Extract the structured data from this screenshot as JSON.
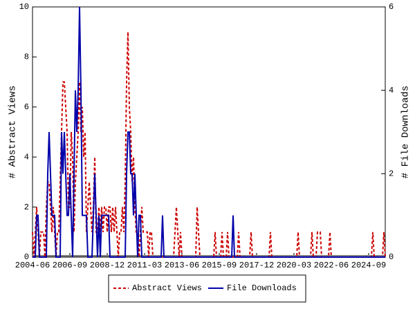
{
  "chart_data": {
    "type": "line",
    "y_label": "# Abstract Views",
    "y2_label": "# File Downloads",
    "categories": [
      "2004-06",
      null,
      null,
      null,
      null,
      null,
      null,
      null,
      null,
      null,
      null,
      null,
      null,
      null,
      null,
      null,
      null,
      null,
      null,
      null,
      null,
      null,
      null,
      null,
      null,
      null,
      null,
      "2006-09",
      null,
      null,
      null,
      null,
      null,
      null,
      null,
      null,
      null,
      null,
      null,
      null,
      null,
      null,
      null,
      null,
      null,
      null,
      null,
      null,
      null,
      null,
      null,
      null,
      null,
      null,
      "2008-12",
      null,
      null,
      null,
      null,
      null,
      null,
      null,
      null,
      null,
      null,
      null,
      null,
      null,
      null,
      null,
      null,
      null,
      null,
      null,
      null,
      null,
      null,
      null,
      null,
      null,
      null,
      "2011-03",
      null,
      null,
      null,
      null,
      null,
      null,
      null,
      null,
      null,
      null,
      null,
      null,
      null,
      null,
      null,
      null,
      null,
      null,
      null,
      null,
      null,
      null,
      null,
      null,
      null,
      null,
      "2013-06",
      null,
      null,
      null,
      null,
      null,
      null,
      null,
      null,
      null,
      null,
      null,
      null,
      null,
      null,
      null,
      null,
      null,
      null,
      null,
      null,
      null,
      null,
      null,
      null,
      null,
      null,
      "2015-09",
      null,
      null,
      null,
      null,
      null,
      null,
      null,
      null,
      null,
      null,
      null,
      null,
      null,
      null,
      null,
      null,
      null,
      null,
      null,
      null,
      null,
      null,
      null,
      null,
      null,
      null,
      "2017-12",
      null,
      null,
      null,
      null,
      null,
      null,
      null,
      null,
      null,
      null,
      null,
      null,
      null,
      null,
      null,
      null,
      null,
      null,
      null,
      null,
      null,
      null,
      null,
      null,
      null,
      null,
      "2020-03",
      null,
      null,
      null,
      null,
      null,
      null,
      null,
      null,
      null,
      null,
      null,
      null,
      null,
      null,
      null,
      null,
      null,
      null,
      null,
      null,
      null,
      null,
      null,
      null,
      null,
      null,
      "2022-06",
      null,
      null,
      null,
      null,
      null,
      null,
      null,
      null,
      null,
      null,
      null,
      null,
      null,
      null,
      null,
      null,
      null,
      null,
      null,
      null,
      null,
      null,
      null,
      null,
      null,
      null,
      "2024-09",
      null,
      null,
      null,
      null,
      null,
      null,
      null,
      null,
      null,
      null,
      null,
      null
    ],
    "series": [
      {
        "name": "Abstract Views",
        "color": "#cc0000",
        "dash": true,
        "values": [
          1,
          0,
          1,
          2,
          1,
          0,
          1,
          1,
          1,
          0,
          2,
          3,
          3,
          2,
          1,
          2,
          1,
          0,
          1,
          1,
          3,
          5,
          7,
          7,
          6,
          5,
          2,
          2,
          5,
          4,
          1,
          3,
          4,
          5,
          7,
          5,
          6,
          4,
          5,
          1,
          2,
          3,
          2,
          1,
          2,
          4,
          1,
          1,
          2,
          1,
          2,
          1,
          2,
          2,
          1,
          2,
          2,
          1,
          2,
          1,
          2,
          1,
          0,
          1,
          1,
          2,
          1,
          3,
          7,
          9,
          6,
          5,
          3,
          4,
          2,
          1,
          1,
          0,
          1,
          2,
          1,
          1,
          1,
          1,
          0,
          1,
          1,
          0,
          0,
          0,
          0,
          0,
          0,
          0,
          0,
          0,
          0,
          0,
          0,
          0,
          0,
          0,
          0,
          1,
          2,
          1,
          0,
          1,
          0,
          0,
          0,
          0,
          0,
          0,
          0,
          0,
          0,
          0,
          0,
          2,
          1,
          0,
          0,
          0,
          0,
          0,
          0,
          0,
          0,
          0,
          0,
          0,
          1,
          0,
          0,
          0,
          0,
          1,
          0,
          0,
          0,
          1,
          0,
          0,
          0,
          0,
          0,
          0,
          0,
          1,
          0,
          0,
          0,
          0,
          0,
          0,
          0,
          0,
          1,
          0,
          0,
          0,
          0,
          0,
          0,
          0,
          0,
          0,
          0,
          0,
          0,
          0,
          1,
          0,
          0,
          0,
          0,
          0,
          0,
          0,
          0,
          0,
          0,
          0,
          0,
          0,
          0,
          0,
          0,
          0,
          0,
          0,
          1,
          0,
          0,
          0,
          0,
          0,
          0,
          0,
          0,
          0,
          1,
          0,
          0,
          0,
          1,
          1,
          1,
          0,
          0,
          0,
          0,
          0,
          0,
          1,
          0,
          0,
          0,
          0,
          0,
          0,
          0,
          0,
          0,
          0,
          0,
          0,
          0,
          0,
          0,
          0,
          0,
          0,
          0,
          0,
          0,
          0,
          0,
          0,
          0,
          0,
          0,
          0,
          0,
          0,
          1,
          0,
          0,
          0,
          0,
          0,
          0,
          0,
          1,
          0
        ]
      },
      {
        "name": "File Downloads",
        "color": "#0000aa",
        "axis": "y2",
        "values": [
          0,
          0,
          0,
          1,
          1,
          0,
          0,
          0,
          0,
          0,
          0,
          2,
          3,
          2,
          1,
          1,
          1,
          0,
          0,
          0,
          0,
          3,
          2,
          3,
          2,
          1,
          1,
          2,
          1,
          0,
          2,
          4,
          3,
          4,
          6,
          4,
          1,
          1,
          1,
          1,
          0,
          0,
          0,
          0,
          1,
          2,
          1,
          0,
          1,
          0,
          1,
          1,
          1,
          1,
          1,
          1,
          0,
          0,
          0,
          0,
          0,
          0,
          0,
          0,
          0,
          0,
          0,
          0,
          2,
          3,
          3,
          2,
          2,
          1,
          2,
          1,
          0,
          1,
          1,
          0,
          0,
          0,
          0,
          0,
          0,
          0,
          0,
          0,
          0,
          0,
          0,
          0,
          0,
          0,
          1,
          0,
          0,
          0,
          0,
          0,
          0,
          0,
          0,
          0,
          0,
          0,
          0,
          0,
          0,
          0,
          0,
          0,
          0,
          0,
          0,
          0,
          0,
          0,
          0,
          0,
          0,
          0,
          0,
          0,
          0,
          0,
          0,
          0,
          0,
          0,
          0,
          0,
          0,
          0,
          0,
          0,
          0,
          0,
          0,
          0,
          0,
          0,
          0,
          0,
          0,
          1,
          0,
          0,
          0,
          0,
          0,
          0,
          0,
          0,
          0,
          0,
          0,
          0,
          0,
          0,
          0,
          0,
          0,
          0,
          0,
          0,
          0,
          0,
          0,
          0,
          0,
          0,
          0,
          0,
          0,
          0,
          0,
          0,
          0,
          0,
          0,
          0,
          0,
          0,
          0,
          0,
          0,
          0,
          0,
          0,
          0,
          0,
          0,
          0,
          0,
          0,
          0,
          0,
          0,
          0,
          0,
          0,
          0,
          0,
          0,
          0,
          0,
          0,
          0,
          0,
          0,
          0,
          0,
          0,
          0,
          0,
          0,
          0,
          0,
          0,
          0,
          0,
          0,
          0,
          0,
          0,
          0,
          0,
          0,
          0,
          0,
          0,
          0,
          0,
          0,
          0,
          0,
          0,
          0,
          0,
          0,
          0,
          0,
          0,
          0,
          0,
          0,
          0,
          0,
          0,
          0,
          0,
          0,
          0,
          0,
          0
        ]
      }
    ],
    "ylim": [
      0,
      10
    ],
    "yticks": [
      0,
      2,
      4,
      6,
      8,
      10
    ],
    "y2lim": [
      0,
      6
    ],
    "y2ticks": [
      0,
      2,
      4,
      6
    ],
    "legend": "bottom"
  }
}
